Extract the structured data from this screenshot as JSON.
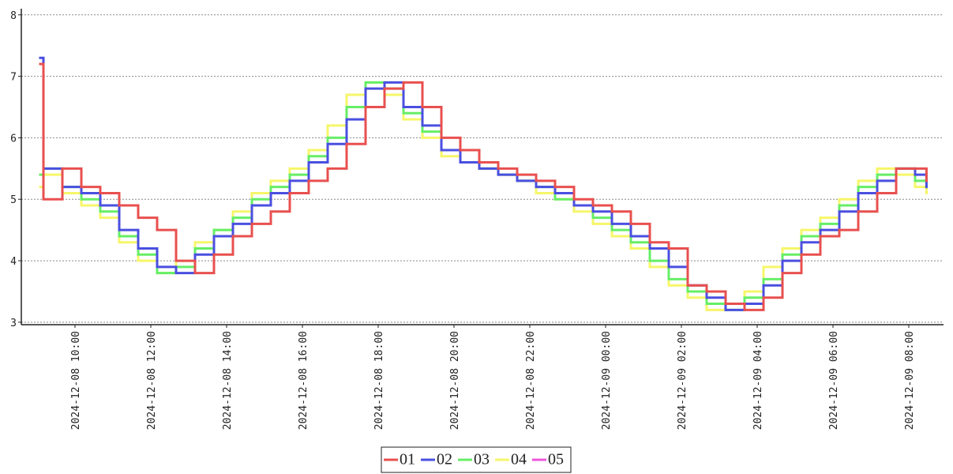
{
  "chart_data": {
    "type": "step-line",
    "x": [
      "2024-12-08 09:05",
      "2024-12-08 09:10",
      "2024-12-08 09:40",
      "2024-12-08 10:10",
      "2024-12-08 10:40",
      "2024-12-08 11:10",
      "2024-12-08 11:40",
      "2024-12-08 12:10",
      "2024-12-08 12:40",
      "2024-12-08 13:10",
      "2024-12-08 13:40",
      "2024-12-08 14:10",
      "2024-12-08 14:40",
      "2024-12-08 15:10",
      "2024-12-08 15:40",
      "2024-12-08 16:10",
      "2024-12-08 16:40",
      "2024-12-08 17:10",
      "2024-12-08 17:40",
      "2024-12-08 18:10",
      "2024-12-08 18:40",
      "2024-12-08 19:10",
      "2024-12-08 19:40",
      "2024-12-08 20:10",
      "2024-12-08 20:40",
      "2024-12-08 21:10",
      "2024-12-08 21:40",
      "2024-12-08 22:10",
      "2024-12-08 22:40",
      "2024-12-08 23:10",
      "2024-12-08 23:40",
      "2024-12-09 00:10",
      "2024-12-09 00:40",
      "2024-12-09 01:10",
      "2024-12-09 01:40",
      "2024-12-09 02:10",
      "2024-12-09 02:40",
      "2024-12-09 03:10",
      "2024-12-09 03:40",
      "2024-12-09 04:10",
      "2024-12-09 04:40",
      "2024-12-09 05:10",
      "2024-12-09 05:40",
      "2024-12-09 06:10",
      "2024-12-09 06:40",
      "2024-12-09 07:10",
      "2024-12-09 07:40",
      "2024-12-09 08:10",
      "2024-12-09 08:28"
    ],
    "series": [
      {
        "name": "01",
        "color": "#e8504f",
        "values": [
          7.2,
          5.0,
          5.5,
          5.2,
          5.1,
          4.9,
          4.7,
          4.5,
          4.0,
          3.8,
          4.1,
          4.4,
          4.6,
          4.8,
          5.1,
          5.3,
          5.5,
          5.9,
          6.5,
          6.8,
          6.9,
          6.5,
          6.0,
          5.8,
          5.6,
          5.5,
          5.4,
          5.3,
          5.2,
          5.0,
          4.9,
          4.8,
          4.6,
          4.3,
          4.2,
          3.6,
          3.5,
          3.3,
          3.2,
          3.4,
          3.8,
          4.1,
          4.4,
          4.5,
          4.8,
          5.1,
          5.5,
          5.5,
          5.3
        ]
      },
      {
        "name": "02",
        "color": "#4a4fe0",
        "values": [
          7.3,
          5.5,
          5.2,
          5.1,
          4.9,
          4.5,
          4.2,
          3.9,
          3.8,
          4.1,
          4.4,
          4.6,
          4.9,
          5.1,
          5.3,
          5.6,
          5.9,
          6.3,
          6.8,
          6.9,
          6.5,
          6.2,
          5.8,
          5.6,
          5.5,
          5.4,
          5.3,
          5.2,
          5.1,
          4.9,
          4.8,
          4.6,
          4.4,
          4.2,
          3.9,
          3.6,
          3.4,
          3.2,
          3.3,
          3.6,
          4.0,
          4.3,
          4.5,
          4.8,
          5.1,
          5.3,
          5.5,
          5.4,
          5.2
        ]
      },
      {
        "name": "03",
        "color": "#66ee66",
        "values": [
          5.4,
          5.5,
          5.2,
          5.0,
          4.8,
          4.4,
          4.1,
          3.8,
          3.9,
          4.2,
          4.5,
          4.7,
          5.0,
          5.2,
          5.4,
          5.7,
          6.0,
          6.5,
          6.9,
          6.8,
          6.4,
          6.1,
          5.8,
          5.6,
          5.5,
          5.4,
          5.3,
          5.2,
          5.0,
          4.9,
          4.7,
          4.5,
          4.3,
          4.0,
          3.7,
          3.5,
          3.3,
          3.2,
          3.4,
          3.7,
          4.1,
          4.4,
          4.6,
          4.9,
          5.2,
          5.4,
          5.5,
          5.3,
          5.2
        ]
      },
      {
        "name": "04",
        "color": "#f6f66a",
        "values": [
          5.2,
          5.4,
          5.1,
          4.9,
          4.7,
          4.3,
          4.0,
          3.8,
          4.0,
          4.3,
          4.5,
          4.8,
          5.1,
          5.3,
          5.5,
          5.8,
          6.2,
          6.7,
          6.9,
          6.7,
          6.3,
          6.0,
          5.7,
          5.6,
          5.5,
          5.4,
          5.3,
          5.1,
          5.0,
          4.8,
          4.6,
          4.4,
          4.2,
          3.9,
          3.6,
          3.4,
          3.2,
          3.3,
          3.5,
          3.9,
          4.2,
          4.5,
          4.7,
          5.0,
          5.3,
          5.5,
          5.4,
          5.2,
          5.1
        ]
      },
      {
        "name": "05",
        "color": "#ee55dd",
        "values": [
          null,
          null,
          null,
          null,
          null,
          null,
          null,
          null,
          null,
          null,
          null,
          null,
          null,
          null,
          null,
          null,
          null,
          null,
          null,
          null,
          null,
          null,
          null,
          null,
          null,
          null,
          null,
          null,
          null,
          null,
          null,
          null,
          null,
          null,
          null,
          null,
          null,
          null,
          null,
          null,
          null,
          null,
          null,
          null,
          null,
          null,
          null,
          null,
          null
        ]
      }
    ],
    "xlim": [
      "2024-12-08 08:35",
      "2024-12-09 08:55"
    ],
    "xticks": [
      "2024-12-08 10:00",
      "2024-12-08 12:00",
      "2024-12-08 14:00",
      "2024-12-08 16:00",
      "2024-12-08 18:00",
      "2024-12-08 20:00",
      "2024-12-08 22:00",
      "2024-12-09 00:00",
      "2024-12-09 02:00",
      "2024-12-09 04:00",
      "2024-12-09 06:00",
      "2024-12-09 08:00"
    ],
    "ylim": [
      2.96,
      8.1
    ],
    "yticks": [
      3,
      4,
      5,
      6,
      7,
      8
    ],
    "grid": true,
    "legend": "bottom"
  }
}
